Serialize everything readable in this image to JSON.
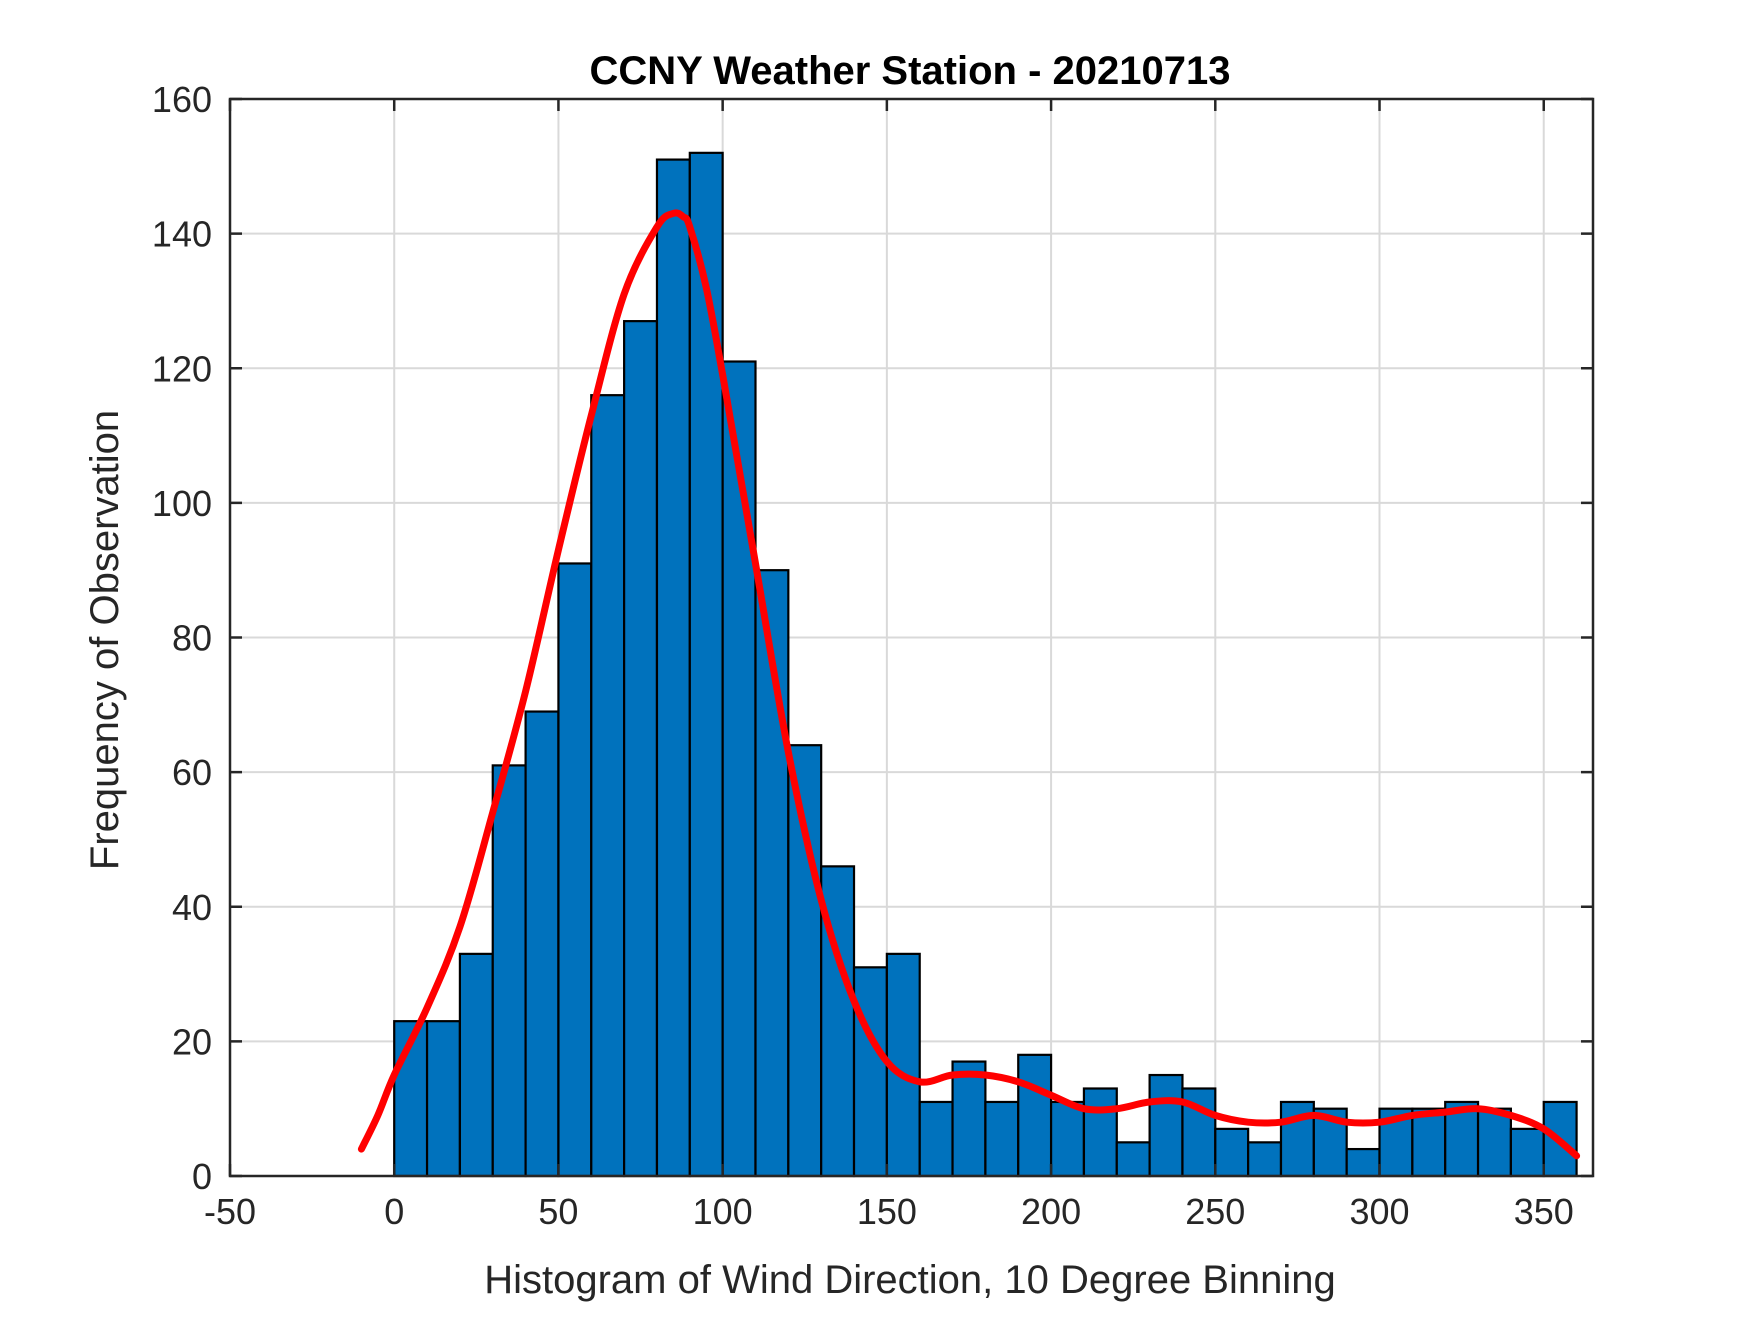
{
  "chart_data": {
    "type": "bar",
    "title": "CCNY Weather Station - 20210713",
    "xlabel": "Histogram of Wind Direction, 10 Degree Binning",
    "ylabel": "Frequency of Observation",
    "xlim": [
      -50,
      365
    ],
    "ylim": [
      0,
      160
    ],
    "xticks": [
      -50,
      0,
      50,
      100,
      150,
      200,
      250,
      300,
      350
    ],
    "yticks": [
      0,
      20,
      40,
      60,
      80,
      100,
      120,
      140,
      160
    ],
    "grid": true,
    "bin_width": 10,
    "bar_color": "#0072BD",
    "bar_edge_color": "#000000",
    "fit_color": "#FF0000",
    "bins": {
      "edges_start": [
        0,
        10,
        20,
        30,
        40,
        50,
        60,
        70,
        80,
        90,
        100,
        110,
        120,
        130,
        140,
        150,
        160,
        170,
        180,
        190,
        200,
        210,
        220,
        230,
        240,
        250,
        260,
        270,
        280,
        290,
        300,
        310,
        320,
        330,
        340,
        350
      ],
      "counts": [
        23,
        23,
        33,
        61,
        69,
        91,
        116,
        127,
        151,
        152,
        121,
        90,
        64,
        46,
        31,
        33,
        11,
        17,
        11,
        18,
        11,
        13,
        5,
        15,
        13,
        7,
        5,
        11,
        10,
        4,
        10,
        10,
        11,
        10,
        7,
        11
      ]
    },
    "series": [
      {
        "name": "fit",
        "type": "line",
        "x": [
          -10,
          -5,
          0,
          10,
          20,
          30,
          40,
          50,
          60,
          70,
          80,
          85,
          88,
          90,
          95,
          100,
          110,
          120,
          130,
          140,
          150,
          160,
          170,
          180,
          190,
          200,
          210,
          220,
          230,
          240,
          250,
          260,
          270,
          280,
          290,
          300,
          310,
          320,
          330,
          340,
          350,
          360
        ],
        "y": [
          4,
          9,
          15,
          25,
          37,
          54,
          72,
          93,
          113,
          131,
          141,
          143,
          142.5,
          141,
          132,
          119,
          91,
          63,
          41,
          26,
          17,
          14,
          15,
          15,
          14,
          12,
          10,
          10,
          11,
          11,
          9,
          8,
          8,
          9,
          8,
          8,
          9,
          9.5,
          10,
          9,
          7,
          3
        ]
      }
    ]
  }
}
